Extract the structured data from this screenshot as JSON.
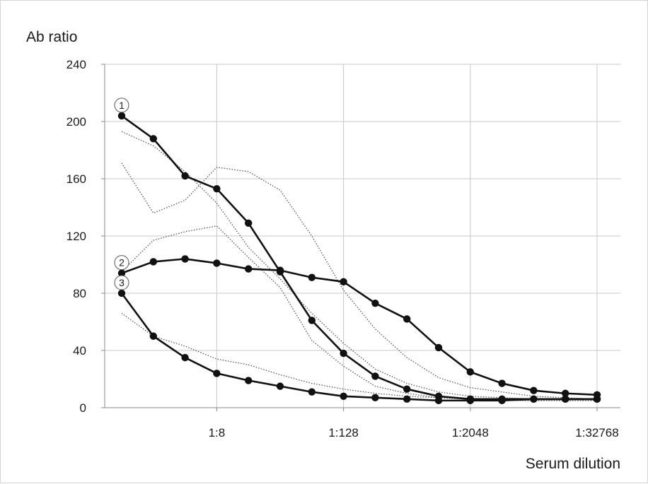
{
  "chart_data": {
    "type": "line",
    "xlabel": "Serum dilution",
    "ylabel": "Ab ratio",
    "ylim": [
      0,
      240
    ],
    "yticks": [
      0,
      40,
      80,
      120,
      160,
      200,
      240
    ],
    "x": [
      "1:1",
      "1:2",
      "1:4",
      "1:8",
      "1:16",
      "1:32",
      "1:64",
      "1:128",
      "1:256",
      "1:512",
      "1:1024",
      "1:2048",
      "1:4096",
      "1:8192",
      "1:16384",
      "1:32768"
    ],
    "xticks": [
      "1:8",
      "1:128",
      "1:2048",
      "1:32768"
    ],
    "grid": true,
    "series": [
      {
        "name": "1",
        "style": "solid-markers",
        "values": [
          204,
          188,
          162,
          153,
          129,
          95,
          61,
          38,
          22,
          13,
          8,
          6,
          6,
          6,
          6,
          6
        ]
      },
      {
        "name": "2",
        "style": "solid-markers",
        "values": [
          94,
          102,
          104,
          101,
          97,
          96,
          91,
          88,
          73,
          62,
          42,
          25,
          17,
          12,
          10,
          9
        ]
      },
      {
        "name": "3",
        "style": "solid-markers",
        "values": [
          80,
          50,
          35,
          24,
          19,
          15,
          11,
          8,
          7,
          6,
          5,
          5,
          5,
          6,
          6,
          6
        ]
      },
      {
        "style": "dotted",
        "values": [
          193,
          183,
          165,
          143,
          112,
          90,
          66,
          45,
          27,
          17,
          11,
          8,
          7,
          6,
          6,
          6
        ]
      },
      {
        "style": "dotted",
        "values": [
          171,
          136,
          145,
          168,
          165,
          152,
          120,
          82,
          55,
          35,
          21,
          14,
          11,
          8,
          7,
          6
        ]
      },
      {
        "style": "dotted",
        "values": [
          95,
          117,
          123,
          127,
          105,
          84,
          47,
          29,
          15,
          10,
          7,
          6,
          5,
          5,
          5,
          5
        ]
      },
      {
        "style": "dotted",
        "values": [
          66,
          50,
          43,
          34,
          30,
          23,
          17,
          13,
          10,
          8,
          7,
          6,
          5,
          5,
          5,
          5
        ]
      }
    ],
    "colors": {
      "line": "#111111",
      "dotted": "#555555",
      "grid": "#c8c8c8",
      "axis": "#888888"
    }
  }
}
